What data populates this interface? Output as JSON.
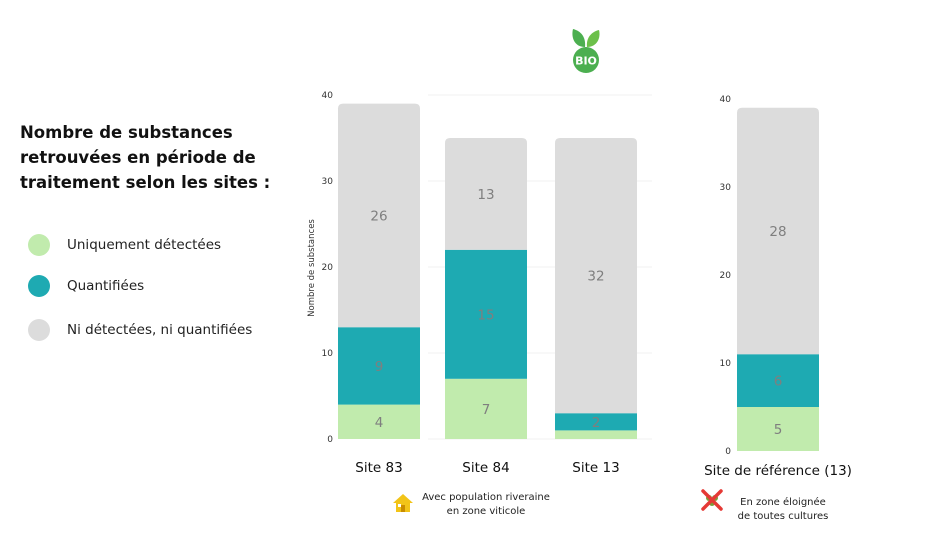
{
  "title": "Nombre de substances retrouvées en période de traitement selon les sites :",
  "legend": [
    {
      "label": "Uniquement détectées",
      "color": "#c1ebad"
    },
    {
      "label": "Quantifiées",
      "color": "#1eaab2"
    },
    {
      "label": "Ni détectées, ni quantifiées",
      "color": "#dcdcdc"
    }
  ],
  "badge": {
    "text": "BIO",
    "icon": "bio-leaf-icon",
    "color": "#4caf50"
  },
  "notes": {
    "riverside": {
      "icon": "house-icon",
      "line1": "Avec population riveraine",
      "line2": "en zone viticole"
    },
    "remote": {
      "icon": "crossed-vine-icon",
      "line1": "En zone éloignée",
      "line2": "de toutes cultures"
    }
  },
  "chart_data": [
    {
      "type": "bar",
      "stacked": true,
      "categories": [
        "Site 83",
        "Site 84",
        "Site 13"
      ],
      "series": [
        {
          "name": "Uniquement détectées",
          "values": [
            4,
            7,
            1
          ],
          "color": "#c1ebad",
          "labels": [
            "4",
            "7",
            ""
          ]
        },
        {
          "name": "Quantifiées",
          "values": [
            9,
            15,
            2
          ],
          "color": "#1eaab2",
          "labels": [
            "9",
            "15",
            "2"
          ]
        },
        {
          "name": "Ni détectées, ni quantifiées",
          "values": [
            26,
            13,
            32
          ],
          "color": "#dcdcdc",
          "labels": [
            "26",
            "13",
            "32"
          ]
        }
      ],
      "ylabel": "Nombre de substances",
      "ylim": [
        0,
        40
      ],
      "yticks": [
        0,
        10,
        20,
        30,
        40
      ],
      "label_color": "#7f7f7f"
    },
    {
      "type": "bar",
      "stacked": true,
      "categories": [
        "Site de référence (13)"
      ],
      "series": [
        {
          "name": "Uniquement détectées",
          "values": [
            5
          ],
          "color": "#c1ebad",
          "labels": [
            "5"
          ]
        },
        {
          "name": "Quantifiées",
          "values": [
            6
          ],
          "color": "#1eaab2",
          "labels": [
            "6"
          ]
        },
        {
          "name": "Ni détectées, ni quantifiées",
          "values": [
            28
          ],
          "color": "#dcdcdc",
          "labels": [
            "28"
          ]
        }
      ],
      "ylabel": "",
      "ylim": [
        0,
        40
      ],
      "yticks": [
        0,
        10,
        20,
        30,
        40
      ],
      "label_color": "#7f7f7f"
    }
  ]
}
